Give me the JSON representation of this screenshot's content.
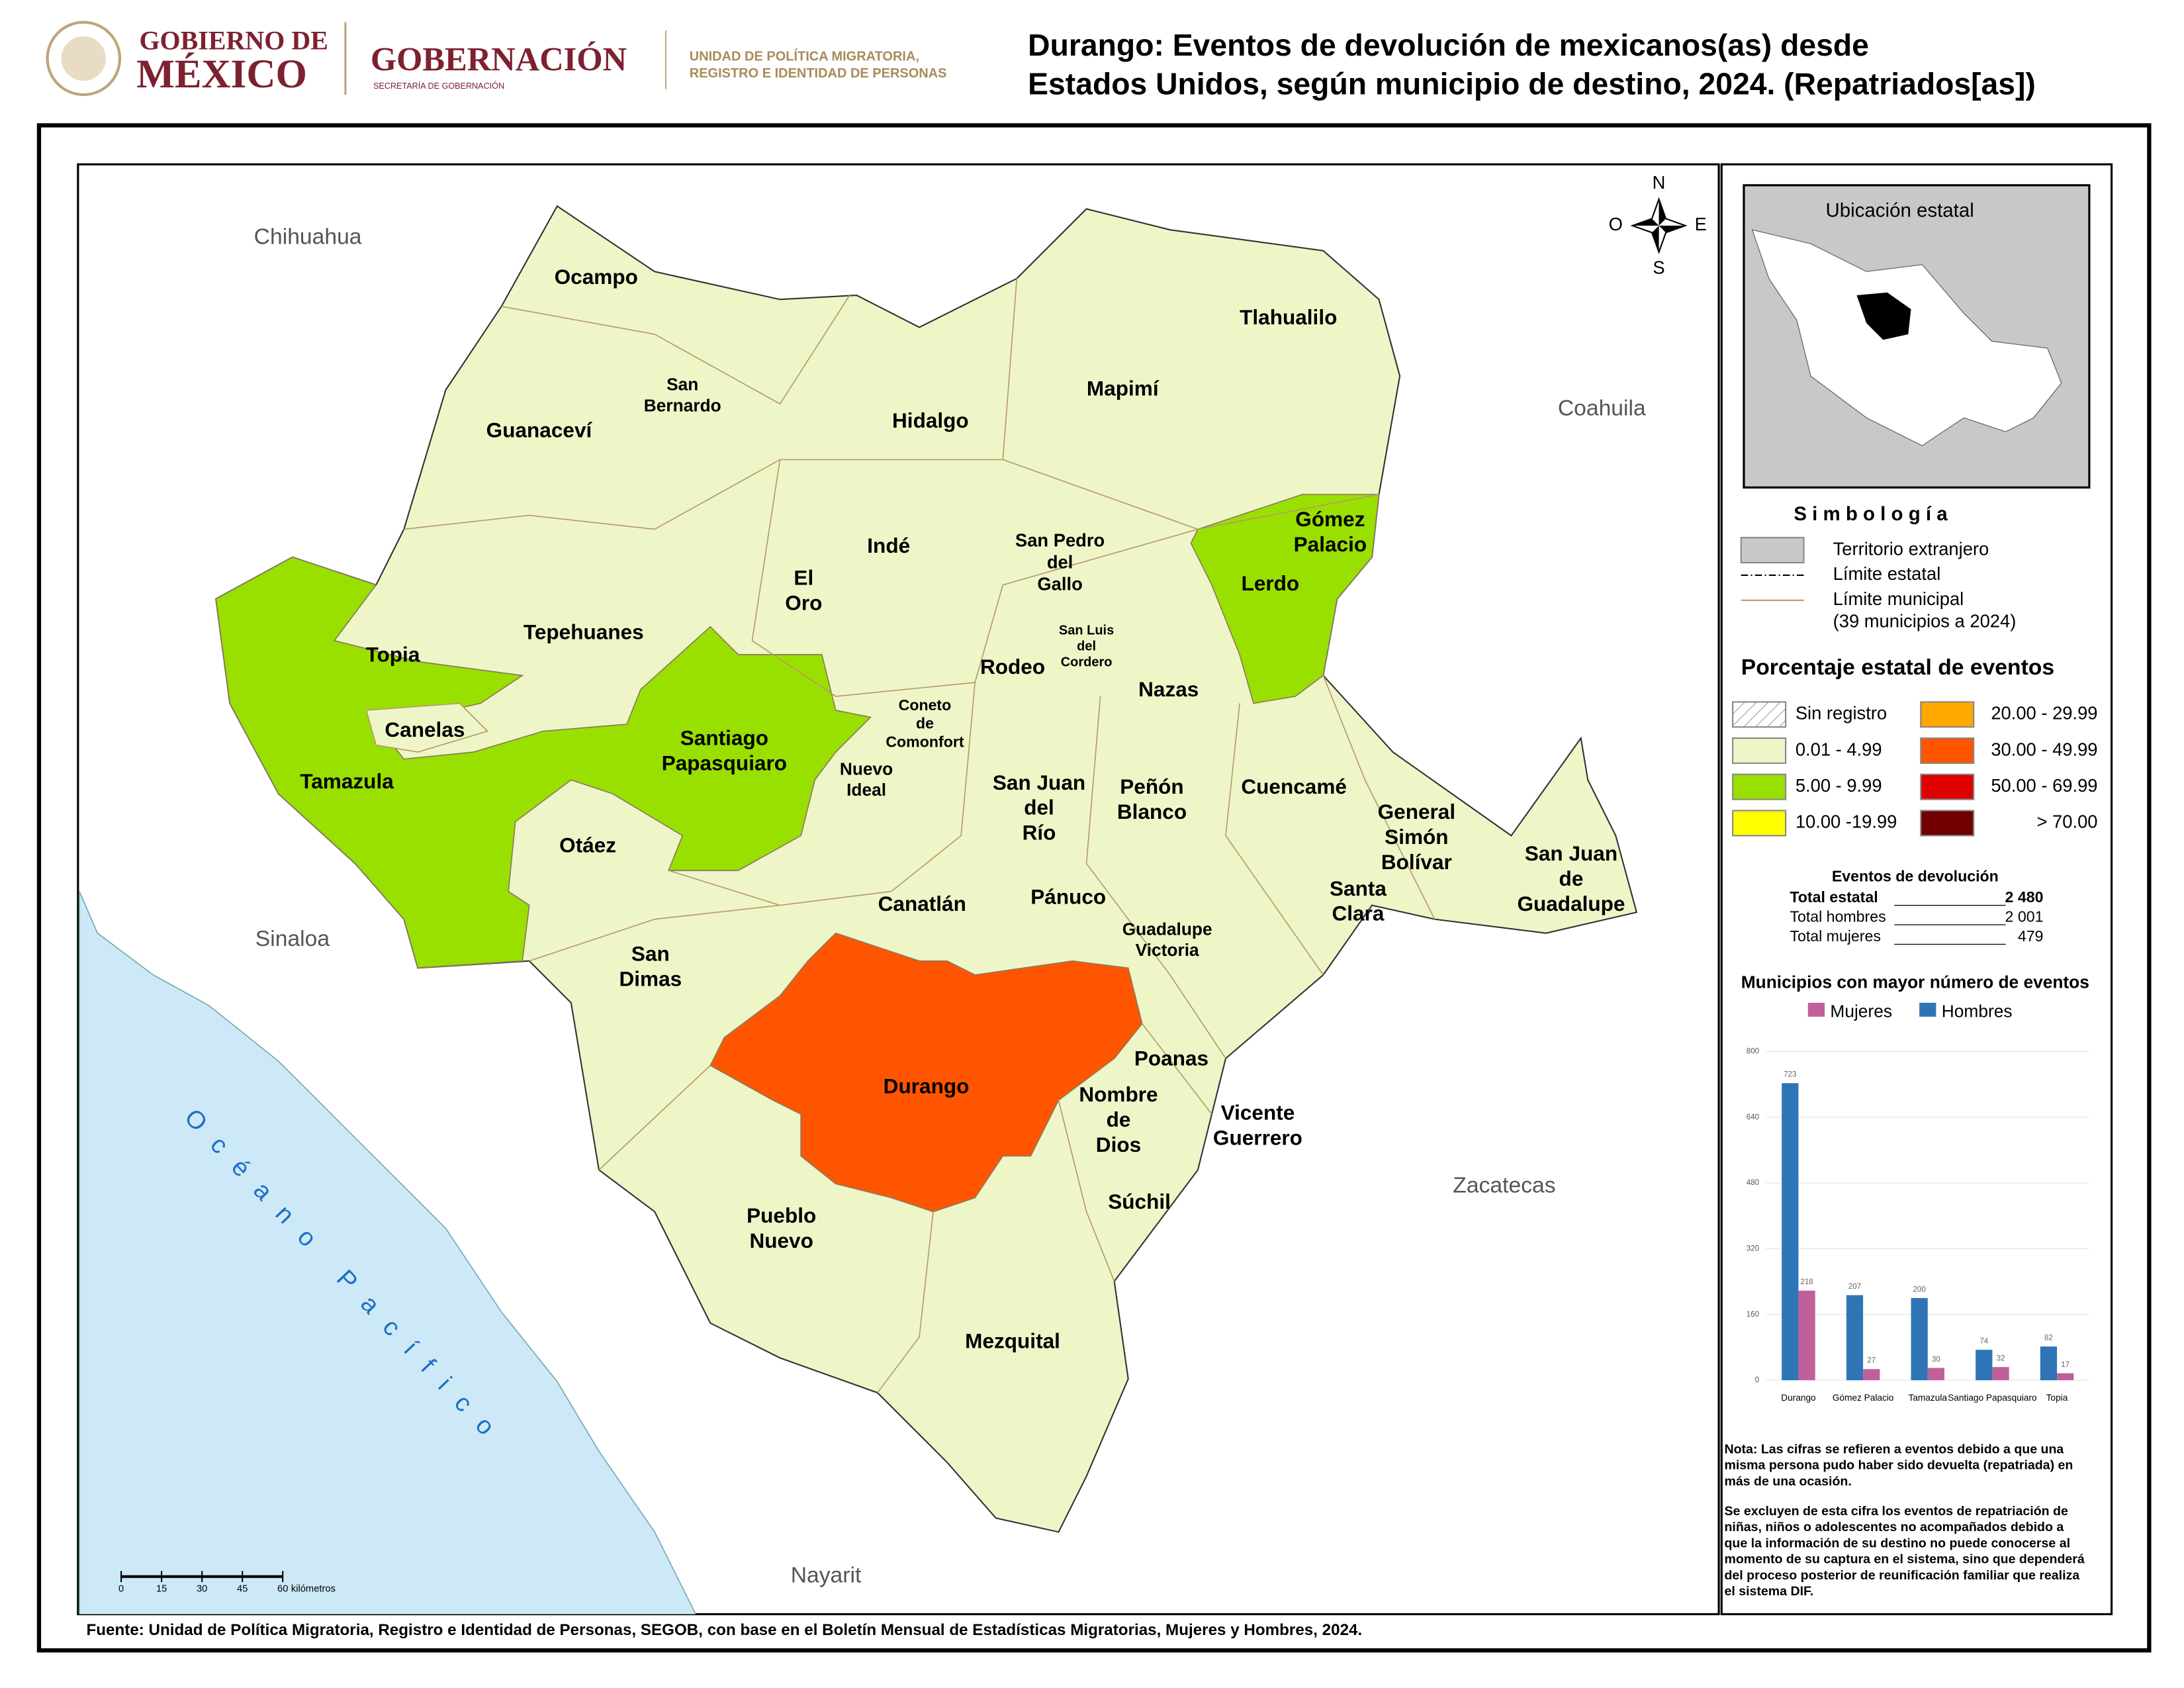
{
  "header": {
    "logo_line1": "GOBIERNO DE",
    "logo_line2": "MÉXICO",
    "dept": "GOBERNACIÓN",
    "dept_sub": "SECRETARÍA DE GOBERNACIÓN",
    "unit_line1": "UNIDAD DE POLÍTICA MIGRATORIA,",
    "unit_line2": "REGISTRO E IDENTIDAD DE PERSONAS",
    "title_line1": "Durango: Eventos de devolución de mexicanos(as) desde",
    "title_line2": "Estados Unidos, según municipio de destino, 2024. (Repatriados[as])"
  },
  "map": {
    "neighbors": [
      "Chihuahua",
      "Coahuila",
      "Sinaloa",
      "Zacatecas",
      "Nayarit"
    ],
    "ocean": "Océano Pacífico",
    "compass": {
      "n": "N",
      "s": "S",
      "e": "E",
      "o": "O"
    },
    "scale": {
      "ticks": [
        0,
        15,
        30,
        45,
        60
      ],
      "unit": "kilómetros"
    },
    "municipalities": [
      {
        "lines": [
          "Ocampo"
        ]
      },
      {
        "lines": [
          "San",
          "Bernardo"
        ]
      },
      {
        "lines": [
          "Guanaceví"
        ]
      },
      {
        "lines": [
          "Hidalgo"
        ]
      },
      {
        "lines": [
          "Mapimí"
        ]
      },
      {
        "lines": [
          "Tlahualilo"
        ]
      },
      {
        "lines": [
          "Gómez",
          "Palacio"
        ]
      },
      {
        "lines": [
          "Indé"
        ]
      },
      {
        "lines": [
          "San Pedro",
          "del",
          "Gallo"
        ]
      },
      {
        "lines": [
          "Lerdo"
        ]
      },
      {
        "lines": [
          "El",
          "Oro"
        ]
      },
      {
        "lines": [
          "Tepehuanes"
        ]
      },
      {
        "lines": [
          "San Luis",
          "del",
          "Cordero"
        ]
      },
      {
        "lines": [
          "Topia"
        ]
      },
      {
        "lines": [
          "Rodeo"
        ]
      },
      {
        "lines": [
          "Nazas"
        ]
      },
      {
        "lines": [
          "Canelas"
        ]
      },
      {
        "lines": [
          "Coneto",
          "de",
          "Comonfort"
        ]
      },
      {
        "lines": [
          "Santiago",
          "Papasquiaro"
        ]
      },
      {
        "lines": [
          "Tamazula"
        ]
      },
      {
        "lines": [
          "Nuevo",
          "Ideal"
        ]
      },
      {
        "lines": [
          "San Juan",
          "del",
          "Río"
        ]
      },
      {
        "lines": [
          "Peñón",
          "Blanco"
        ]
      },
      {
        "lines": [
          "Cuencamé"
        ]
      },
      {
        "lines": [
          "General",
          "Simón",
          "Bolívar"
        ]
      },
      {
        "lines": [
          "San Juan",
          "de",
          "Guadalupe"
        ]
      },
      {
        "lines": [
          "Otáez"
        ]
      },
      {
        "lines": [
          "Canatlán"
        ]
      },
      {
        "lines": [
          "Pánuco"
        ]
      },
      {
        "lines": [
          "Santa",
          "Clara"
        ]
      },
      {
        "lines": [
          "Guadalupe",
          "Victoria"
        ]
      },
      {
        "lines": [
          "San",
          "Dimas"
        ]
      },
      {
        "lines": [
          "Durango"
        ]
      },
      {
        "lines": [
          "Poanas"
        ]
      },
      {
        "lines": [
          "Nombre",
          "de",
          "Dios"
        ]
      },
      {
        "lines": [
          "Vicente",
          "Guerrero"
        ]
      },
      {
        "lines": [
          "Súchil"
        ]
      },
      {
        "lines": [
          "Pueblo",
          "Nuevo"
        ]
      },
      {
        "lines": [
          "Mezquital"
        ]
      }
    ]
  },
  "inset": {
    "title": "Ubicación estatal"
  },
  "legend": {
    "title": "S i m b o l o g í a",
    "items": [
      {
        "label": "Territorio extranjero"
      },
      {
        "label": "Límite estatal"
      },
      {
        "label": "Límite municipal"
      },
      {
        "label": "(39 municipios a 2024)"
      }
    ],
    "classes_title": "Porcentaje estatal de eventos",
    "classes": [
      {
        "label": "Sin registro",
        "color": "hatch"
      },
      {
        "label": "0.01  - 4.99",
        "color": "#eef6c8"
      },
      {
        "label": "5.00  - 9.99",
        "color": "#99e000"
      },
      {
        "label": "10.00 -19.99",
        "color": "#ffff00"
      },
      {
        "label": "20.00 - 29.99",
        "color": "#ffa800"
      },
      {
        "label": "30.00 - 49.99",
        "color": "#ff5500"
      },
      {
        "label": "50.00 - 69.99",
        "color": "#e00000"
      },
      {
        "label": "> 70.00",
        "color": "#730000"
      }
    ]
  },
  "stats": {
    "title": "Eventos de devolución",
    "rows": [
      [
        "Total estatal",
        "2 480"
      ],
      [
        "Total hombres",
        "2 001"
      ],
      [
        "Total mujeres",
        "479"
      ]
    ]
  },
  "chart_data": {
    "type": "bar",
    "title": "Municipios con mayor número de eventos",
    "categories": [
      "Durango",
      "Gómez Palacio",
      "Tamazula",
      "Santiago Papasquiaro",
      "Topia"
    ],
    "series": [
      {
        "name": "Mujeres",
        "color": "#c0609a",
        "values": [
          218,
          27,
          30,
          32,
          17
        ]
      },
      {
        "name": "Hombres",
        "color": "#2e75b6",
        "values": [
          723,
          207,
          200,
          74,
          82
        ]
      }
    ],
    "ylim": [
      0,
      800
    ],
    "yticks": [
      0,
      160,
      320,
      480,
      640,
      800
    ],
    "grid": true
  },
  "notes": [
    [
      "Nota: Las cifras se refieren a eventos debido a que una",
      "misma persona pudo haber sido devuelta (repatriada) en",
      "más de una ocasión."
    ],
    [
      "Se excluyen de esta cifra los eventos de repatriación de",
      "niñas, niños o adolescentes no acompañados debido a",
      "que la información de su destino no puede conocerse al",
      "momento de su captura en el sistema, sino que dependerá",
      "del proceso posterior de reunificación familiar que realiza",
      "el sistema DIF."
    ]
  ],
  "source": "Fuente: Unidad de Política Migratoria, Registro e Identidad de Personas, SEGOB, con base en el Boletín Mensual de Estadísticas Migratorias, Mujeres y Hombres, 2024."
}
